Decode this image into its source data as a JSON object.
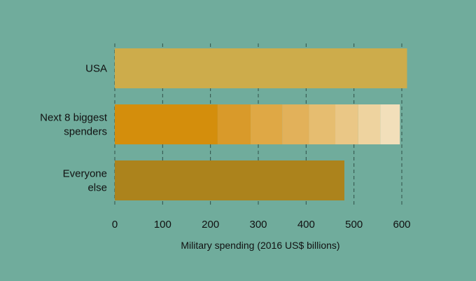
{
  "chart_data": {
    "type": "bar",
    "orientation": "horizontal",
    "stacked": true,
    "categories": [
      {
        "lines": [
          "USA"
        ]
      },
      {
        "lines": [
          "Next 8 biggest",
          "spenders"
        ]
      },
      {
        "lines": [
          "Everyone",
          "else"
        ]
      }
    ],
    "bars": [
      {
        "category": "USA",
        "segments": [
          {
            "value": 611,
            "color": "#cdac4b"
          }
        ]
      },
      {
        "category": "Next 8 biggest spenders",
        "segments": [
          {
            "value": 215,
            "color": "#d48e0c"
          },
          {
            "value": 69,
            "color": "#d99a2a"
          },
          {
            "value": 66,
            "color": "#dfa845"
          },
          {
            "value": 56,
            "color": "#e2b15a"
          },
          {
            "value": 55,
            "color": "#e6bd70"
          },
          {
            "value": 48,
            "color": "#eac786"
          },
          {
            "value": 46,
            "color": "#eed39f"
          },
          {
            "value": 41,
            "color": "#f2dfba"
          }
        ]
      },
      {
        "category": "Everyone else",
        "segments": [
          {
            "value": 480,
            "color": "#ac831c"
          }
        ]
      }
    ],
    "xlim": [
      0,
      600
    ],
    "xticks": [
      0,
      100,
      200,
      300,
      400,
      500,
      600
    ],
    "xlabel": "Military spending (2016 US$ billions)",
    "grid": "vertical dashed"
  }
}
